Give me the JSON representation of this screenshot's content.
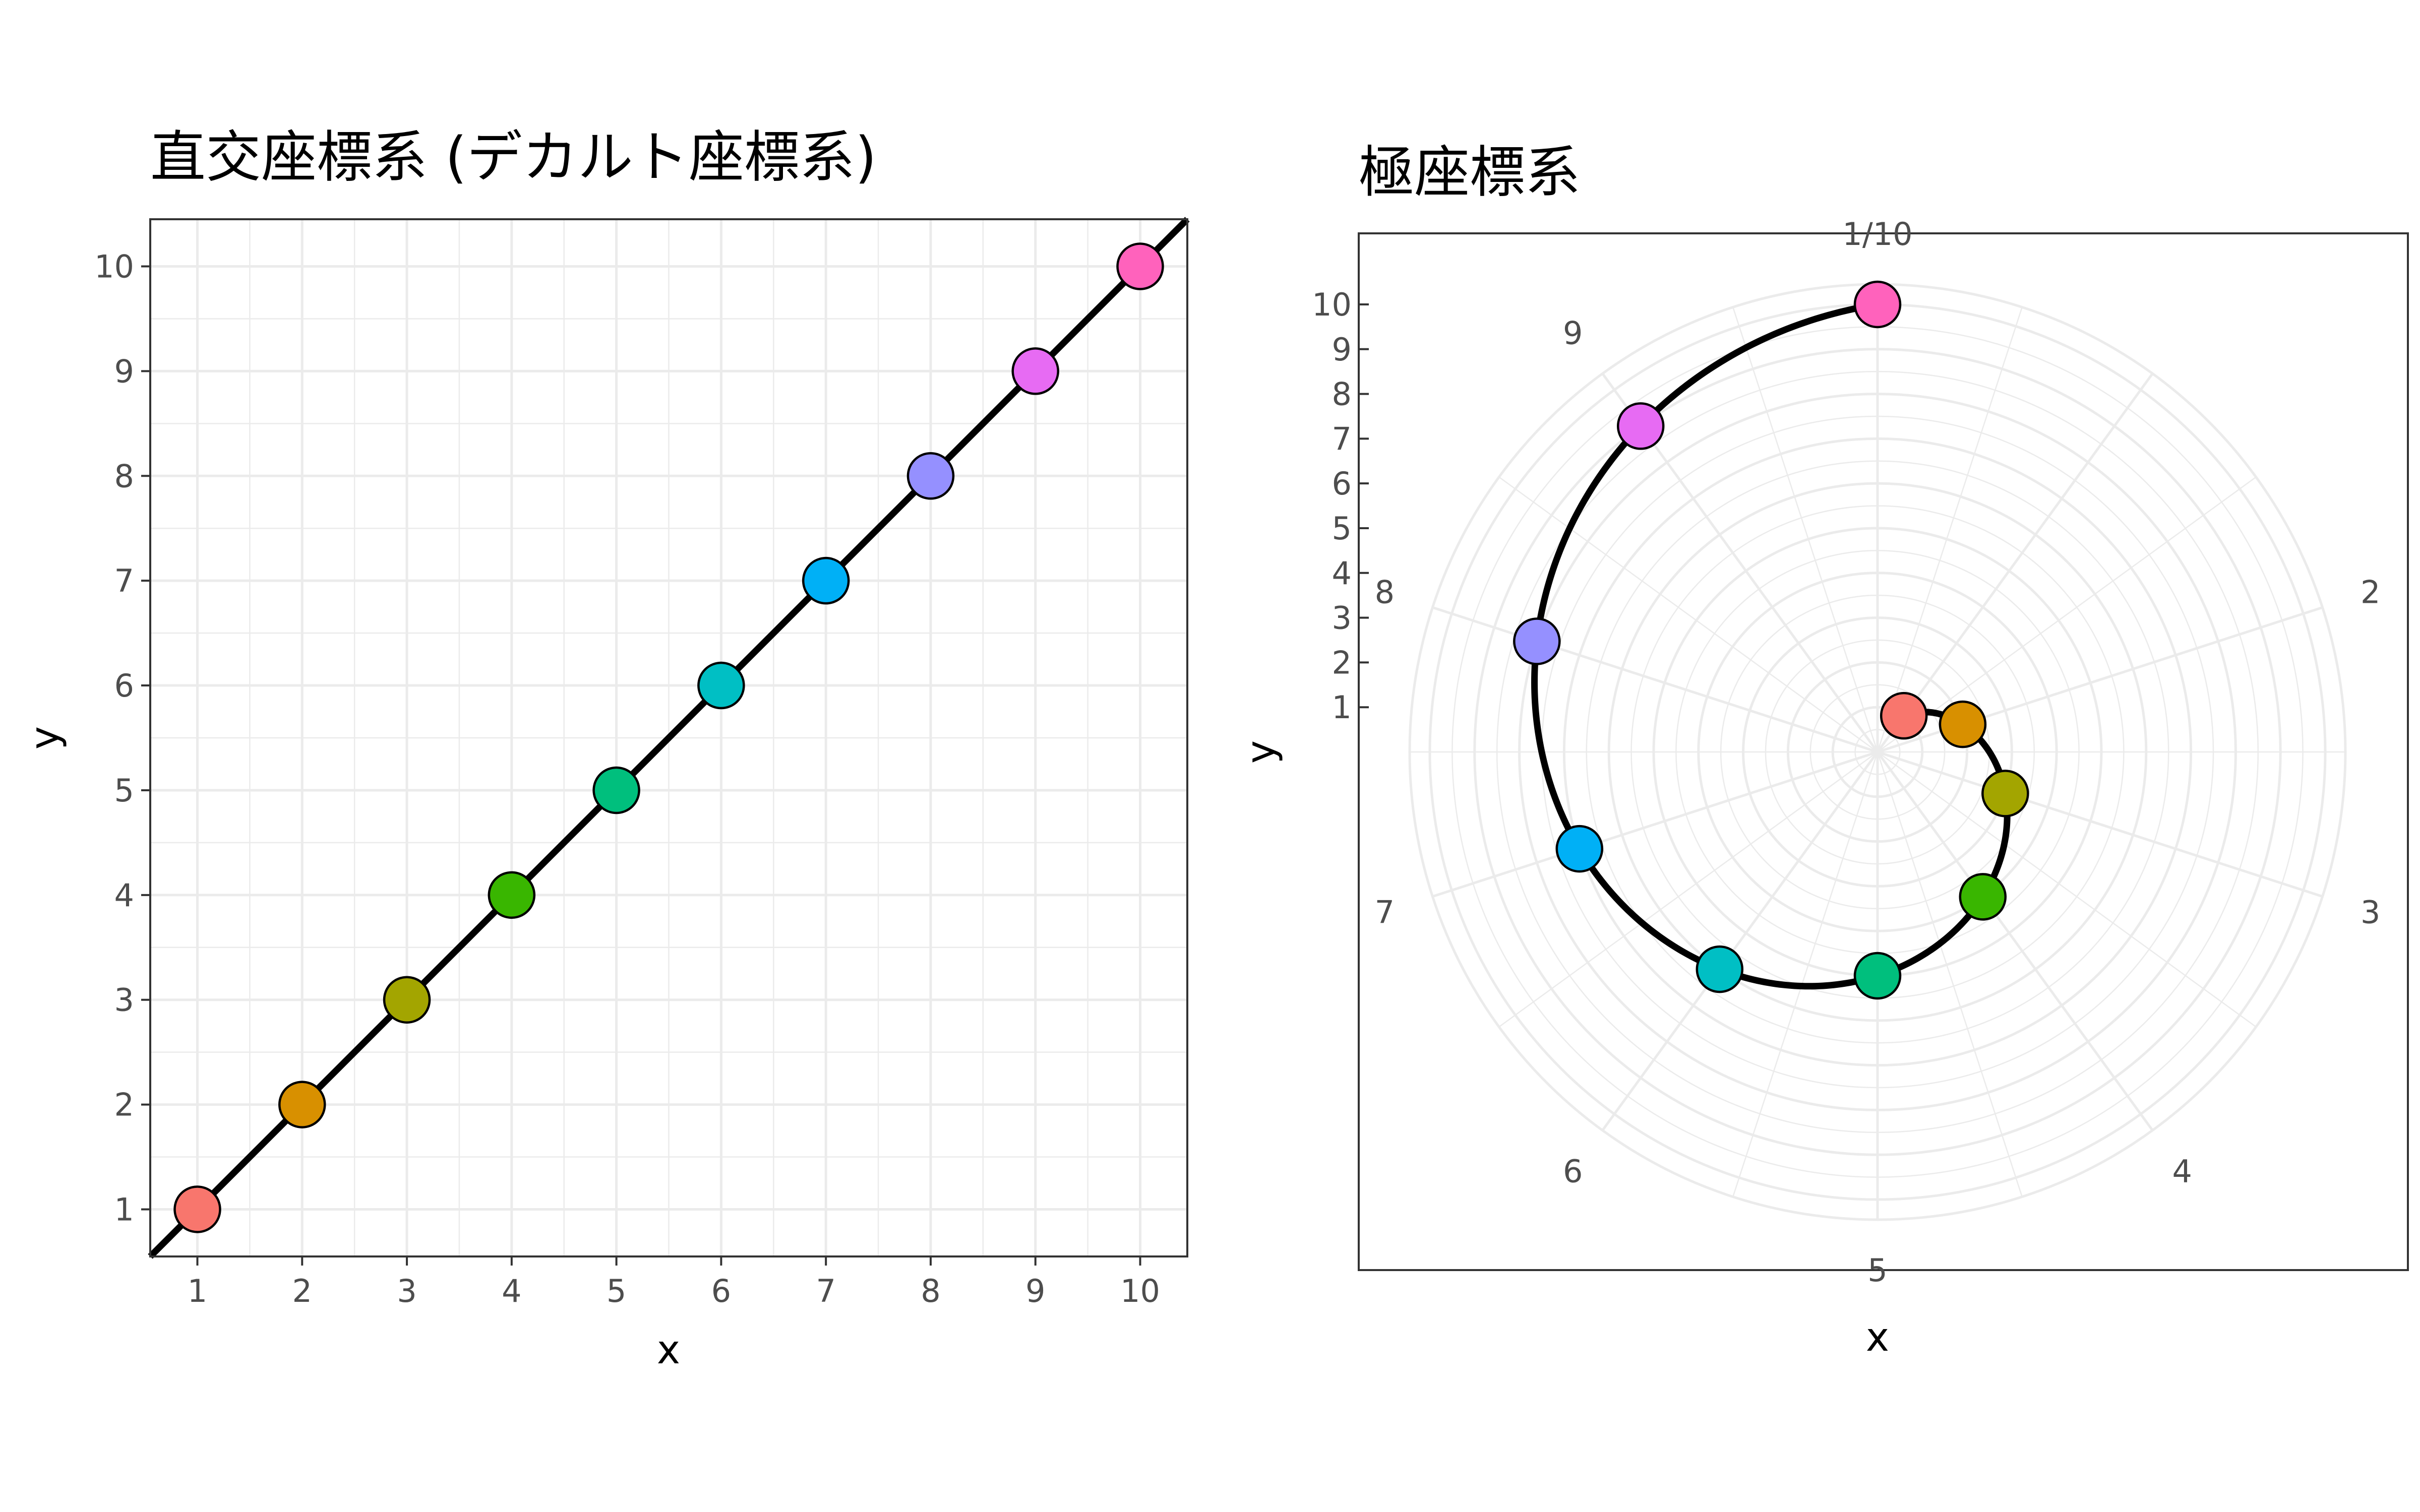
{
  "chart_data": [
    {
      "type": "line",
      "title": "直交座標系 (デカルト座標系)",
      "xlabel": "x",
      "ylabel": "y",
      "xlim": [
        0.55,
        10.45
      ],
      "ylim": [
        0.55,
        10.45
      ],
      "xticks": [
        "1",
        "2",
        "3",
        "4",
        "5",
        "6",
        "7",
        "8",
        "9",
        "10"
      ],
      "yticks": [
        "1",
        "2",
        "3",
        "4",
        "5",
        "6",
        "7",
        "8",
        "9",
        "10"
      ],
      "grid": true,
      "x": [
        1,
        2,
        3,
        4,
        5,
        6,
        7,
        8,
        9,
        10
      ],
      "y": [
        1,
        2,
        3,
        4,
        5,
        6,
        7,
        8,
        9,
        10
      ],
      "point_colors": [
        "#F8766D",
        "#D89000",
        "#A3A500",
        "#39B600",
        "#00BF7D",
        "#00BFC4",
        "#00B0F6",
        "#9590FF",
        "#E76BF3",
        "#FF62BC"
      ],
      "line_color": "#000000"
    },
    {
      "type": "scatter",
      "coordinate_system": "polar",
      "title": "極座標系",
      "xlabel": "x",
      "ylabel": "y",
      "theta_range": [
        0,
        10
      ],
      "r_range": [
        0,
        10.45
      ],
      "angular_ticks": [
        "1/10",
        "2",
        "3",
        "4",
        "5",
        "6",
        "7",
        "8",
        "9"
      ],
      "radial_ticks": [
        "1",
        "2",
        "3",
        "4",
        "5",
        "6",
        "7",
        "8",
        "9",
        "10"
      ],
      "grid": true,
      "x": [
        1,
        2,
        3,
        4,
        5,
        6,
        7,
        8,
        9,
        10
      ],
      "y": [
        1,
        2,
        3,
        4,
        5,
        6,
        7,
        8,
        9,
        10
      ],
      "point_colors": [
        "#F8766D",
        "#D89000",
        "#A3A500",
        "#39B600",
        "#00BF7D",
        "#00BFC4",
        "#00B0F6",
        "#9590FF",
        "#E76BF3",
        "#FF62BC"
      ],
      "line_color": "#000000"
    }
  ]
}
